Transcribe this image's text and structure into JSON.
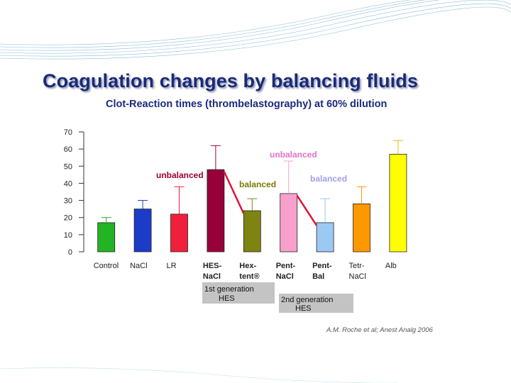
{
  "slide": {
    "title": "Coagulation changes by balancing fluids",
    "subtitle": "Clot-Reaction times (thrombelastography) at 60% dilution",
    "citation": "A.M. Roche et al; Anest Analg 2006"
  },
  "chart_data": {
    "type": "bar",
    "title": "Clot-Reaction times (thrombelastography) at 60% dilution",
    "xlabel": "",
    "ylabel": "",
    "ylim": [
      0,
      70
    ],
    "yticks": [
      0,
      10,
      20,
      30,
      40,
      50,
      60,
      70
    ],
    "grid": false,
    "categories": [
      {
        "line1": "Control",
        "line2": "",
        "bold": false
      },
      {
        "line1": "NaCl",
        "line2": "",
        "bold": false
      },
      {
        "line1": "LR",
        "line2": "",
        "bold": false
      },
      {
        "line1": "HES-",
        "line2": "NaCl",
        "bold": true
      },
      {
        "line1": "Hex-",
        "line2": "tent®",
        "bold": true
      },
      {
        "line1": "Pent-",
        "line2": "NaCl",
        "bold": true
      },
      {
        "line1": "Pent-",
        "line2": "Bal",
        "bold": true
      },
      {
        "line1": "Tetr-",
        "line2": "NaCl",
        "bold": false
      },
      {
        "line1": "Alb",
        "line2": "",
        "bold": false
      }
    ],
    "values": [
      17,
      25,
      22,
      48,
      24,
      34,
      17,
      28,
      57
    ],
    "error_upper": [
      20,
      30,
      38,
      62,
      31,
      53,
      31,
      38,
      65
    ],
    "colors": [
      "#22b422",
      "#1c3cc8",
      "#f0203c",
      "#98003a",
      "#7e8410",
      "#f8a0cc",
      "#9cc8f4",
      "#ff9800",
      "#ffff00"
    ],
    "annotations": [
      {
        "text": "unbalanced",
        "color": "#9e0030"
      },
      {
        "text": "balanced",
        "color": "#7a7a00"
      },
      {
        "text": "unbalanced",
        "color": "#e070d0"
      },
      {
        "text": "balanced",
        "color": "#a0a0e8"
      }
    ],
    "group_boxes": [
      {
        "line1": "1st generation",
        "line2": "HES"
      },
      {
        "line1": "2nd generation",
        "line2": "HES"
      }
    ]
  }
}
